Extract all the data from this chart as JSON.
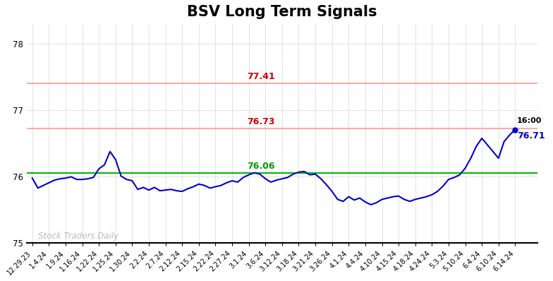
{
  "title": "BSV Long Term Signals",
  "title_fontsize": 15,
  "title_fontweight": "bold",
  "background_color": "#ffffff",
  "line_color": "#0000cc",
  "line_width": 1.5,
  "ylim": [
    75,
    78.3
  ],
  "yticks": [
    75,
    76,
    77,
    78
  ],
  "hline_green": 76.06,
  "hline_red1": 76.73,
  "hline_red2": 77.41,
  "hline_green_color": "#00bb00",
  "hline_red_line_color": "#ffaaaa",
  "annotation_green_text": "76.06",
  "annotation_green_color": "#009900",
  "annotation_red1_text": "76.73",
  "annotation_red2_text": "77.41",
  "annotation_red_color": "#cc0000",
  "last_label": "16:00",
  "last_value_label": "76.71",
  "last_value_color": "#0000cc",
  "watermark": "Stock Traders Daily",
  "watermark_color": "#bbbbbb",
  "grid_color": "#dddddd",
  "xtick_labels": [
    "12.29.23",
    "1.4.24",
    "1.9.24",
    "1.16.24",
    "1.22.24",
    "1.25.24",
    "1.30.24",
    "2.2.24",
    "2.7.24",
    "2.12.24",
    "2.15.24",
    "2.22.24",
    "2.27.24",
    "3.1.24",
    "3.6.24",
    "3.12.24",
    "3.18.24",
    "3.21.24",
    "3.26.24",
    "4.1.24",
    "4.4.24",
    "4.10.24",
    "4.15.24",
    "4.18.24",
    "4.24.24",
    "5.3.24",
    "5.10.24",
    "6.4.24",
    "6.10.24",
    "6.14.24"
  ],
  "price_data": [
    75.98,
    75.83,
    75.87,
    75.91,
    75.95,
    75.97,
    75.98,
    76.0,
    75.96,
    75.96,
    75.97,
    75.99,
    76.12,
    76.18,
    76.38,
    76.26,
    76.01,
    75.96,
    75.94,
    75.81,
    75.84,
    75.8,
    75.84,
    75.79,
    75.8,
    75.81,
    75.79,
    75.78,
    75.82,
    75.85,
    75.89,
    75.87,
    75.83,
    75.85,
    75.87,
    75.91,
    75.94,
    75.92,
    75.99,
    76.03,
    76.06,
    76.04,
    75.97,
    75.92,
    75.95,
    75.97,
    75.99,
    76.04,
    76.07,
    76.08,
    76.03,
    76.04,
    75.97,
    75.88,
    75.78,
    75.66,
    75.63,
    75.7,
    75.65,
    75.68,
    75.62,
    75.58,
    75.61,
    75.66,
    75.68,
    75.7,
    75.71,
    75.66,
    75.63,
    75.66,
    75.68,
    75.7,
    75.73,
    75.78,
    75.86,
    75.96,
    75.99,
    76.03,
    76.13,
    76.28,
    76.46,
    76.58,
    76.48,
    76.38,
    76.28,
    76.53,
    76.63,
    76.71
  ]
}
